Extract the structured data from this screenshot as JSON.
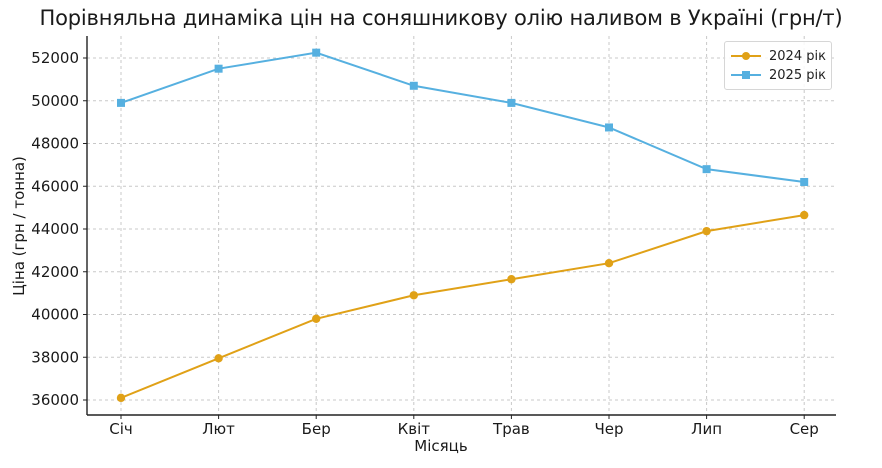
{
  "chart_data": {
    "type": "line",
    "title": "Порівняльна динаміка цін на соняшникову олію наливом в Україні (грн/т)",
    "xlabel": "Місяць",
    "ylabel": "Ціна (грн / тонна)",
    "categories": [
      "Січ",
      "Лют",
      "Бер",
      "Квіт",
      "Трав",
      "Чер",
      "Лип",
      "Сер"
    ],
    "series": [
      {
        "name": "2024 рік",
        "color": "#E0A117",
        "marker": "circle",
        "values": [
          36100,
          37950,
          39800,
          40900,
          41650,
          42400,
          43900,
          44650
        ]
      },
      {
        "name": "2025 рік",
        "color": "#56B0E0",
        "marker": "square",
        "values": [
          49900,
          51500,
          52250,
          50700,
          49900,
          48750,
          46800,
          46200
        ]
      }
    ],
    "yticks": [
      36000,
      38000,
      40000,
      42000,
      44000,
      46000,
      48000,
      50000,
      52000
    ],
    "ylim": [
      35300,
      53100
    ],
    "grid": true,
    "legend_position": "upper right"
  },
  "legend": {
    "items": [
      {
        "label": "2024 рік"
      },
      {
        "label": "2025 рік"
      }
    ]
  }
}
